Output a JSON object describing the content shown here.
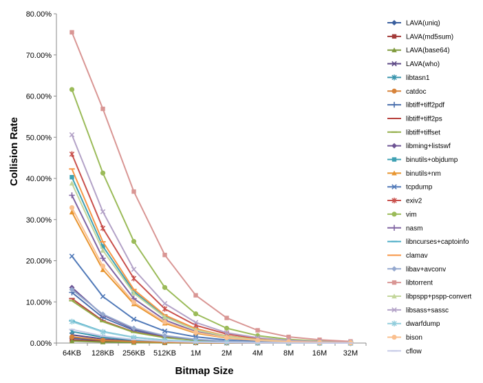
{
  "chart_data": {
    "type": "line",
    "title": "",
    "xlabel": "Bitmap Size",
    "ylabel": "Collision Rate",
    "categories": [
      "64KB",
      "128KB",
      "256KB",
      "512KB",
      "1M",
      "2M",
      "4M",
      "8M",
      "16M",
      "32M"
    ],
    "ylim": [
      0,
      80
    ],
    "yticks": [
      "0.00%",
      "10.00%",
      "20.00%",
      "30.00%",
      "40.00%",
      "50.00%",
      "60.00%",
      "70.00%",
      "80.00%"
    ],
    "grid": false,
    "legend_position": "right",
    "series": [
      {
        "name": "LAVA(uniq)",
        "color": "#3a5f9e",
        "marker": "diamond",
        "values": [
          1.2,
          0.6,
          0.3,
          0.15,
          0.08,
          0.04,
          0.02,
          0.01,
          0.01,
          0.0
        ]
      },
      {
        "name": "LAVA(md5sum)",
        "color": "#a33b39",
        "marker": "square",
        "values": [
          0.8,
          0.4,
          0.2,
          0.1,
          0.05,
          0.03,
          0.02,
          0.01,
          0.0,
          0.0
        ]
      },
      {
        "name": "LAVA(base64)",
        "color": "#7f9a3d",
        "marker": "triangle",
        "values": [
          0.5,
          0.25,
          0.12,
          0.06,
          0.03,
          0.02,
          0.01,
          0.0,
          0.0,
          0.0
        ]
      },
      {
        "name": "LAVA(who)",
        "color": "#5e4a86",
        "marker": "x",
        "values": [
          2.0,
          1.0,
          0.5,
          0.25,
          0.12,
          0.06,
          0.03,
          0.02,
          0.01,
          0.0
        ]
      },
      {
        "name": "libtasn1",
        "color": "#3a95ad",
        "marker": "star",
        "values": [
          2.8,
          1.4,
          0.7,
          0.35,
          0.18,
          0.09,
          0.05,
          0.02,
          0.01,
          0.0
        ]
      },
      {
        "name": "catdoc",
        "color": "#d7833a",
        "marker": "circle",
        "values": [
          1.5,
          0.7,
          0.35,
          0.18,
          0.09,
          0.05,
          0.02,
          0.01,
          0.0,
          0.0
        ]
      },
      {
        "name": "libtiff+tiff2pdf",
        "color": "#4a6fad",
        "marker": "plus",
        "values": [
          12.3,
          6.2,
          3.1,
          1.6,
          0.8,
          0.4,
          0.2,
          0.1,
          0.05,
          0.02
        ]
      },
      {
        "name": "libtiff+tiff2ps",
        "color": "#b8423f",
        "marker": "dash",
        "values": [
          10.8,
          5.4,
          2.7,
          1.4,
          0.7,
          0.35,
          0.18,
          0.09,
          0.04,
          0.02
        ]
      },
      {
        "name": "libtiff+tiffset",
        "color": "#92ad48",
        "marker": "dash",
        "values": [
          10.3,
          5.2,
          2.6,
          1.3,
          0.65,
          0.33,
          0.16,
          0.08,
          0.04,
          0.02
        ]
      },
      {
        "name": "libming+listswf",
        "color": "#6e5494",
        "marker": "diamond",
        "values": [
          13.5,
          6.8,
          3.4,
          1.7,
          0.85,
          0.42,
          0.21,
          0.1,
          0.05,
          0.03
        ]
      },
      {
        "name": "binutils+objdump",
        "color": "#3fa1b3",
        "marker": "square",
        "values": [
          40.3,
          23.5,
          12.5,
          6.5,
          3.3,
          1.7,
          0.85,
          0.42,
          0.21,
          0.1
        ]
      },
      {
        "name": "binutils+nm",
        "color": "#e8952f",
        "marker": "triangle",
        "values": [
          31.8,
          17.8,
          9.5,
          4.8,
          2.4,
          1.2,
          0.6,
          0.3,
          0.15,
          0.08
        ]
      },
      {
        "name": "tcpdump",
        "color": "#5079b8",
        "marker": "x",
        "values": [
          21.1,
          11.3,
          5.8,
          2.9,
          1.5,
          0.75,
          0.38,
          0.19,
          0.1,
          0.05
        ]
      },
      {
        "name": "exiv2",
        "color": "#c9504c",
        "marker": "star",
        "values": [
          45.9,
          27.9,
          15.7,
          8.3,
          4.3,
          2.2,
          1.1,
          0.55,
          0.28,
          0.14
        ]
      },
      {
        "name": "vim",
        "color": "#9bbb59",
        "marker": "circle",
        "values": [
          61.6,
          41.3,
          24.7,
          13.5,
          7.1,
          3.6,
          1.8,
          0.9,
          0.46,
          0.23
        ]
      },
      {
        "name": "nasm",
        "color": "#8064a2",
        "marker": "plus",
        "values": [
          35.9,
          20.6,
          10.8,
          5.6,
          2.8,
          1.4,
          0.7,
          0.35,
          0.18,
          0.09
        ]
      },
      {
        "name": "libncurses+captoinfo",
        "color": "#4bacc6",
        "marker": "dash",
        "values": [
          5.4,
          2.8,
          1.4,
          0.7,
          0.35,
          0.18,
          0.09,
          0.05,
          0.02,
          0.01
        ]
      },
      {
        "name": "clamav",
        "color": "#f79646",
        "marker": "dash",
        "values": [
          42.3,
          24.6,
          13.0,
          6.8,
          3.5,
          1.7,
          0.87,
          0.44,
          0.22,
          0.11
        ]
      },
      {
        "name": "libav+avconv",
        "color": "#95a9cf",
        "marker": "diamond",
        "values": [
          13.0,
          7.0,
          3.6,
          1.8,
          0.9,
          0.45,
          0.23,
          0.11,
          0.06,
          0.03
        ]
      },
      {
        "name": "libtorrent",
        "color": "#d99694",
        "marker": "square",
        "values": [
          75.5,
          56.9,
          36.8,
          21.4,
          11.6,
          6.1,
          3.1,
          1.5,
          0.8,
          0.4
        ]
      },
      {
        "name": "libpspp+pspp-convert",
        "color": "#c3d69b",
        "marker": "triangle",
        "values": [
          38.8,
          22.5,
          12.1,
          6.3,
          3.2,
          1.6,
          0.8,
          0.4,
          0.2,
          0.1
        ]
      },
      {
        "name": "libsass+sassc",
        "color": "#b3a2c7",
        "marker": "x",
        "values": [
          50.6,
          31.9,
          17.9,
          9.6,
          5.0,
          2.5,
          1.3,
          0.65,
          0.33,
          0.16
        ]
      },
      {
        "name": "dwarfdump",
        "color": "#92cddc",
        "marker": "star",
        "values": [
          5.2,
          2.7,
          1.35,
          0.68,
          0.34,
          0.17,
          0.09,
          0.04,
          0.02,
          0.01
        ]
      },
      {
        "name": "bison",
        "color": "#fac08f",
        "marker": "circle",
        "values": [
          32.9,
          18.7,
          9.9,
          5.1,
          2.6,
          1.3,
          0.65,
          0.33,
          0.16,
          0.08
        ]
      },
      {
        "name": "cflow",
        "color": "#c5c9e6",
        "marker": "dash",
        "values": [
          3.3,
          1.7,
          0.85,
          0.43,
          0.21,
          0.11,
          0.05,
          0.03,
          0.01,
          0.0
        ]
      }
    ]
  }
}
